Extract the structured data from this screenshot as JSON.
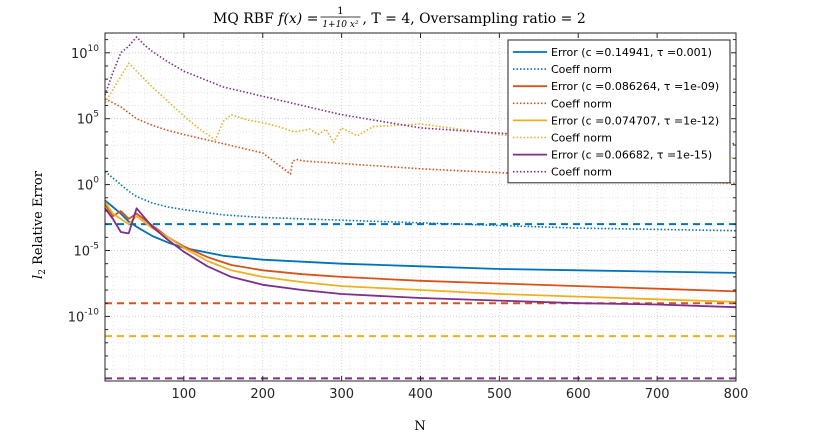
{
  "chart_data": {
    "type": "line",
    "title": "MQ RBF f(x) = 1/(1+10x²), T = 4, Oversampling ratio = 2",
    "title_parts": {
      "prefix": "MQ RBF ",
      "fx": "f(x) = ",
      "frac_num": "1",
      "frac_den": "1+10 x²",
      "suffix": ", T = 4, Oversampling ratio = 2"
    },
    "xlabel": "N",
    "ylabel": "l2 Relative Error",
    "ylabel_parts": {
      "l": "l",
      "sub": "2",
      "rest": " Relative Error"
    },
    "xscale": "linear",
    "yscale": "log",
    "xlim": [
      0,
      800
    ],
    "ylim_log10": [
      -14.9,
      11.5
    ],
    "xticks": [
      100,
      200,
      300,
      400,
      500,
      600,
      700,
      800
    ],
    "yticks": [
      {
        "exp": 10,
        "label_base": "10",
        "label_exp": "10"
      },
      {
        "exp": 5,
        "label_base": "10",
        "label_exp": "5"
      },
      {
        "exp": 0,
        "label_base": "10",
        "label_exp": "0"
      },
      {
        "exp": -5,
        "label_base": "10",
        "label_exp": "-5"
      },
      {
        "exp": -10,
        "label_base": "10",
        "label_exp": "-10"
      }
    ],
    "grid": true,
    "legend_position": "top-right",
    "series": [
      {
        "name": "Error (c =0.14941, τ =0.001)",
        "kind": "error",
        "color": "#0072BD",
        "x": [
          0,
          10,
          20,
          30,
          40,
          60,
          80,
          100,
          150,
          200,
          300,
          400,
          500,
          600,
          700,
          800
        ],
        "log10_y": [
          -1.2,
          -1.7,
          -2.2,
          -2.8,
          -3.2,
          -3.9,
          -4.4,
          -4.8,
          -5.4,
          -5.7,
          -6.0,
          -6.2,
          -6.4,
          -6.5,
          -6.6,
          -6.7
        ],
        "threshold_log10": -3.0
      },
      {
        "name": "Coeff norm",
        "kind": "coeff",
        "color": "#0072BD",
        "x": [
          0,
          10,
          20,
          30,
          40,
          60,
          80,
          100,
          150,
          200,
          300,
          400,
          500,
          600,
          700,
          800
        ],
        "log10_y": [
          1.0,
          0.5,
          0.0,
          -0.5,
          -0.9,
          -1.4,
          -1.7,
          -1.9,
          -2.3,
          -2.5,
          -2.7,
          -2.9,
          -3.1,
          -3.3,
          -3.4,
          -3.5
        ]
      },
      {
        "name": "Error (c =0.086264, τ =1e-09)",
        "kind": "error",
        "color": "#D95319",
        "x": [
          0,
          10,
          20,
          30,
          40,
          60,
          80,
          100,
          130,
          160,
          200,
          250,
          300,
          400,
          500,
          600,
          700,
          800
        ],
        "log10_y": [
          -1.5,
          -2.4,
          -2.0,
          -2.6,
          -2.2,
          -3.1,
          -4.0,
          -4.7,
          -5.5,
          -6.1,
          -6.5,
          -6.8,
          -7.0,
          -7.3,
          -7.5,
          -7.7,
          -7.9,
          -8.1
        ],
        "threshold_log10": -9.0
      },
      {
        "name": "Coeff norm",
        "kind": "coeff",
        "color": "#D95319",
        "x": [
          0,
          20,
          40,
          60,
          80,
          100,
          150,
          200,
          235,
          238,
          245,
          250,
          300,
          400,
          500,
          600,
          700,
          800
        ],
        "log10_y": [
          6.5,
          5.9,
          5.0,
          4.5,
          4.1,
          3.8,
          3.1,
          2.4,
          0.8,
          1.8,
          1.9,
          1.8,
          1.6,
          1.2,
          0.9,
          0.6,
          0.3,
          0.1
        ]
      },
      {
        "name": "Error (c =0.074707, τ =1e-12)",
        "kind": "error",
        "color": "#EDB120",
        "x": [
          0,
          10,
          20,
          30,
          40,
          60,
          80,
          100,
          130,
          160,
          200,
          250,
          300,
          400,
          500,
          600,
          700,
          800
        ],
        "log10_y": [
          -1.3,
          -2.2,
          -2.6,
          -3.0,
          -2.4,
          -3.3,
          -4.0,
          -4.8,
          -5.8,
          -6.5,
          -7.0,
          -7.4,
          -7.7,
          -8.0,
          -8.3,
          -8.5,
          -8.7,
          -8.9
        ],
        "threshold_log10": -11.5
      },
      {
        "name": "Coeff norm",
        "kind": "coeff",
        "color": "#EDB120",
        "x": [
          0,
          10,
          20,
          30,
          40,
          50,
          60,
          80,
          100,
          120,
          140,
          150,
          160,
          180,
          200,
          220,
          240,
          260,
          270,
          280,
          290,
          300,
          320,
          340,
          400,
          500,
          600,
          700,
          800
        ],
        "log10_y": [
          6.2,
          7.2,
          8.2,
          9.2,
          8.6,
          8.0,
          7.4,
          6.3,
          5.2,
          4.2,
          3.4,
          4.8,
          5.3,
          4.9,
          4.7,
          4.4,
          4.0,
          4.2,
          3.8,
          4.2,
          3.2,
          4.3,
          3.7,
          4.4,
          4.6,
          3.8,
          3.2,
          2.6,
          2.0
        ]
      },
      {
        "name": "Error (c =0.06682, τ =1e-15)",
        "kind": "error",
        "color": "#7E2F8E",
        "x": [
          0,
          10,
          20,
          30,
          40,
          60,
          80,
          100,
          130,
          160,
          200,
          250,
          300,
          400,
          500,
          600,
          700,
          800
        ],
        "log10_y": [
          -1.8,
          -2.6,
          -3.6,
          -3.7,
          -1.8,
          -3.2,
          -4.2,
          -5.1,
          -6.2,
          -7.0,
          -7.6,
          -8.0,
          -8.3,
          -8.6,
          -8.8,
          -9.0,
          -9.1,
          -9.3
        ],
        "threshold_log10": -14.7
      },
      {
        "name": "Coeff norm",
        "kind": "coeff",
        "color": "#7E2F8E",
        "x": [
          0,
          10,
          20,
          30,
          40,
          50,
          60,
          80,
          100,
          150,
          200,
          300,
          400,
          500,
          600,
          700,
          800
        ],
        "log10_y": [
          6.8,
          8.5,
          10.0,
          10.5,
          11.2,
          10.6,
          10.1,
          9.3,
          8.6,
          7.4,
          6.7,
          5.3,
          4.3,
          3.9,
          3.6,
          3.3,
          3.1
        ]
      }
    ]
  }
}
